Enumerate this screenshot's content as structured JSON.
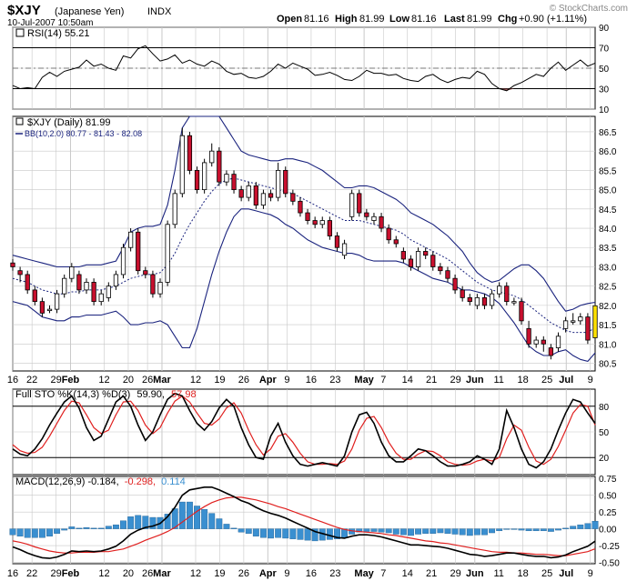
{
  "header": {
    "symbol": "$XJY",
    "symbol_desc": "(Japanese Yen)",
    "exchange": "INDX",
    "date": "10-Jul-2007 10:50am",
    "open_label": "Open",
    "open": "81.16",
    "high_label": "High",
    "high": "81.99",
    "low_label": "Low",
    "low": "81.16",
    "last_label": "Last",
    "last": "81.99",
    "chg_label": "Chg",
    "chg": "+0.90 (+1.11%)",
    "watermark": "© StockCharts.com"
  },
  "colors": {
    "up_candle": "#ffffff",
    "down_candle": "#c8102e",
    "bollinger": "#1a237e",
    "rsi_line": "#000000",
    "rsi_fill": "#8b4a4a",
    "sto_k": "#000000",
    "sto_d": "#e0201f",
    "macd_line": "#000000",
    "macd_signal": "#e0201f",
    "macd_hist": "#3a8fd0",
    "grid": "#c8c8c8",
    "highlight": "#ffe200"
  },
  "chart_data": [
    {
      "type": "line",
      "panel": "rsi",
      "legend": "RSI(14) 55.21",
      "ylim": [
        10,
        90
      ],
      "ticks": [
        "90",
        "70",
        "50",
        "30",
        "10"
      ],
      "reference_lines": [
        70,
        30
      ],
      "values": [
        33,
        30,
        31,
        30,
        41,
        46,
        42,
        47,
        49,
        51,
        58,
        52,
        54,
        50,
        48,
        62,
        60,
        69,
        72,
        64,
        57,
        59,
        63,
        55,
        58,
        54,
        52,
        57,
        54,
        47,
        44,
        45,
        41,
        40,
        42,
        47,
        54,
        50,
        55,
        52,
        49,
        43,
        44,
        46,
        43,
        39,
        38,
        42,
        48,
        45,
        45,
        43,
        44,
        40,
        38,
        37,
        42,
        44,
        39,
        36,
        39,
        41,
        40,
        47,
        44,
        35,
        30,
        28,
        33,
        36,
        40,
        44,
        42,
        50,
        56,
        48,
        53,
        58,
        52,
        55
      ]
    },
    {
      "type": "candlestick",
      "panel": "price",
      "legend_1": "$XJY (Daily) 81.99",
      "legend_2": "BB(10,2.0) 80.77 - 81.43 - 82.08",
      "ylim": [
        80.5,
        86.5
      ],
      "ticks": [
        "86.5",
        "86.0",
        "85.5",
        "85.0",
        "84.5",
        "84.0",
        "83.5",
        "83.0",
        "82.5",
        "82.0",
        "81.5",
        "81.0",
        "80.5"
      ],
      "close": [
        83.0,
        82.8,
        82.4,
        82.1,
        81.8,
        81.9,
        82.3,
        82.7,
        83.0,
        82.4,
        82.6,
        82.1,
        82.3,
        82.5,
        82.8,
        83.5,
        83.9,
        82.9,
        82.8,
        82.3,
        82.6,
        84.1,
        84.9,
        86.4,
        85.5,
        85.0,
        85.7,
        86.0,
        85.2,
        85.4,
        85.0,
        84.8,
        85.1,
        84.6,
        84.9,
        84.8,
        85.5,
        84.9,
        84.7,
        84.4,
        84.2,
        84.1,
        84.2,
        83.8,
        83.5,
        83.6,
        84.9,
        84.4,
        84.3,
        84.3,
        84.0,
        83.7,
        83.6,
        83.2,
        83.0,
        83.4,
        83.3,
        83.0,
        82.9,
        82.7,
        82.4,
        82.2,
        82.1,
        82.2,
        82.0,
        82.3,
        82.5,
        82.1,
        82.1,
        81.6,
        81.0,
        81.1,
        81.0,
        80.7,
        81.2,
        81.6,
        81.6,
        81.7,
        81.1,
        81.99
      ],
      "open": [
        83.1,
        82.9,
        82.8,
        82.4,
        82.1,
        81.9,
        81.9,
        82.3,
        82.7,
        82.8,
        82.4,
        82.6,
        82.1,
        82.2,
        82.5,
        82.8,
        83.5,
        83.9,
        82.9,
        82.8,
        82.3,
        82.6,
        84.1,
        84.9,
        86.4,
        85.5,
        85.0,
        85.7,
        86.0,
        85.2,
        85.4,
        85.0,
        84.8,
        85.1,
        84.6,
        84.9,
        84.8,
        85.5,
        84.9,
        84.7,
        84.4,
        84.2,
        84.1,
        84.2,
        83.8,
        83.3,
        84.3,
        84.9,
        84.4,
        84.2,
        84.3,
        84.0,
        83.7,
        83.4,
        83.2,
        83.0,
        83.4,
        83.3,
        83.0,
        82.9,
        82.7,
        82.4,
        82.2,
        82.0,
        82.2,
        82.0,
        82.3,
        82.5,
        82.1,
        82.1,
        81.4,
        81.0,
        81.1,
        80.9,
        80.9,
        81.4,
        81.6,
        81.6,
        81.7,
        81.16
      ],
      "high": [
        83.2,
        83.0,
        82.9,
        82.5,
        82.2,
        82.0,
        82.4,
        82.8,
        83.1,
        82.9,
        82.7,
        82.7,
        82.4,
        82.6,
        82.9,
        83.6,
        84.0,
        84.0,
        83.0,
        82.9,
        82.7,
        84.2,
        85.0,
        86.6,
        86.5,
        85.6,
        85.8,
        86.2,
        86.1,
        85.5,
        85.5,
        85.1,
        85.2,
        85.2,
        85.0,
        85.0,
        85.7,
        85.6,
        85.0,
        84.8,
        84.5,
        84.3,
        84.3,
        84.3,
        83.9,
        83.7,
        85.0,
        85.0,
        84.5,
        84.4,
        84.4,
        84.1,
        83.8,
        83.5,
        83.3,
        83.5,
        83.5,
        83.4,
        83.1,
        83.0,
        82.8,
        82.5,
        82.3,
        82.3,
        82.3,
        82.4,
        82.6,
        82.6,
        82.2,
        82.2,
        81.6,
        81.2,
        81.2,
        81.0,
        81.3,
        81.7,
        81.8,
        81.8,
        81.8,
        81.99
      ],
      "low": [
        82.9,
        82.6,
        82.3,
        82.0,
        81.7,
        81.8,
        81.8,
        82.2,
        82.6,
        82.3,
        82.3,
        82.0,
        82.0,
        82.1,
        82.4,
        82.7,
        83.4,
        82.8,
        82.7,
        82.2,
        82.2,
        82.5,
        84.0,
        84.8,
        85.4,
        84.9,
        84.9,
        85.6,
        85.1,
        85.1,
        84.9,
        84.7,
        84.7,
        84.5,
        84.5,
        84.7,
        84.7,
        84.8,
        84.6,
        84.3,
        84.1,
        84.0,
        84.0,
        83.7,
        83.4,
        83.2,
        84.2,
        84.3,
        84.2,
        84.1,
        83.9,
        83.6,
        83.5,
        83.1,
        82.9,
        82.9,
        83.2,
        82.9,
        82.8,
        82.6,
        82.3,
        82.1,
        82.0,
        81.9,
        81.9,
        81.9,
        82.2,
        82.0,
        82.0,
        81.5,
        80.9,
        80.9,
        80.8,
        80.6,
        80.8,
        81.3,
        81.5,
        81.5,
        81.0,
        81.16
      ],
      "bb_middle": [
        82.7,
        82.65,
        82.6,
        82.5,
        82.4,
        82.35,
        82.3,
        82.3,
        82.35,
        82.35,
        82.4,
        82.4,
        82.4,
        82.45,
        82.5,
        82.6,
        82.7,
        82.75,
        82.8,
        82.8,
        82.85,
        83.05,
        83.35,
        83.75,
        84.1,
        84.4,
        84.7,
        84.95,
        85.15,
        85.25,
        85.3,
        85.25,
        85.2,
        85.15,
        85.1,
        85.05,
        85.0,
        84.95,
        84.9,
        84.8,
        84.7,
        84.6,
        84.5,
        84.4,
        84.3,
        84.2,
        84.2,
        84.2,
        84.15,
        84.1,
        84.05,
        84.0,
        83.95,
        83.85,
        83.7,
        83.6,
        83.5,
        83.4,
        83.3,
        83.2,
        83.05,
        82.9,
        82.75,
        82.6,
        82.5,
        82.4,
        82.35,
        82.3,
        82.25,
        82.15,
        82.0,
        81.85,
        81.7,
        81.55,
        81.45,
        81.35,
        81.3,
        81.3,
        81.3,
        81.43
      ],
      "bb_upper": [
        83.3,
        83.25,
        83.2,
        83.15,
        83.1,
        83.05,
        83.0,
        83.0,
        83.0,
        83.0,
        83.05,
        83.05,
        83.05,
        83.1,
        83.15,
        83.5,
        83.9,
        84.0,
        84.05,
        84.05,
        84.1,
        84.6,
        85.5,
        86.6,
        87.3,
        87.4,
        87.3,
        87.1,
        86.9,
        86.6,
        86.3,
        86.0,
        85.9,
        85.85,
        85.8,
        85.75,
        85.75,
        85.8,
        85.8,
        85.75,
        85.7,
        85.6,
        85.5,
        85.35,
        85.2,
        85.05,
        85.05,
        85.1,
        85.1,
        85.05,
        84.95,
        84.85,
        84.75,
        84.6,
        84.4,
        84.3,
        84.2,
        84.1,
        83.95,
        83.8,
        83.6,
        83.4,
        83.1,
        82.85,
        82.7,
        82.6,
        82.65,
        82.8,
        82.95,
        83.05,
        83.05,
        82.9,
        82.7,
        82.4,
        82.1,
        81.85,
        81.9,
        82.0,
        82.05,
        82.08
      ],
      "bb_lower": [
        82.1,
        82.05,
        82.0,
        81.85,
        81.7,
        81.65,
        81.6,
        81.6,
        81.7,
        81.7,
        81.75,
        81.75,
        81.75,
        81.8,
        81.85,
        81.7,
        81.5,
        81.5,
        81.55,
        81.55,
        81.6,
        81.5,
        81.2,
        80.9,
        80.9,
        81.4,
        82.1,
        82.8,
        83.4,
        83.9,
        84.3,
        84.5,
        84.5,
        84.45,
        84.4,
        84.35,
        84.25,
        84.1,
        84.0,
        83.85,
        83.7,
        83.6,
        83.5,
        83.45,
        83.4,
        83.35,
        83.35,
        83.3,
        83.2,
        83.15,
        83.15,
        83.15,
        83.15,
        83.1,
        83.0,
        82.9,
        82.8,
        82.7,
        82.65,
        82.6,
        82.5,
        82.4,
        82.4,
        82.35,
        82.3,
        82.2,
        82.05,
        81.8,
        81.55,
        81.25,
        80.95,
        80.8,
        80.7,
        80.7,
        80.8,
        80.85,
        80.7,
        80.6,
        80.55,
        80.77
      ]
    },
    {
      "type": "line",
      "panel": "stochastic",
      "legend_1": "Full STO %K(14,3) %D(3)",
      "legend_k": "59.90,",
      "legend_d": "57.98",
      "ylim": [
        0,
        100
      ],
      "ticks": [
        "80",
        "50",
        "20"
      ],
      "reference_lines": [
        80,
        20
      ],
      "k": [
        30,
        24,
        22,
        30,
        42,
        58,
        72,
        85,
        92,
        78,
        55,
        40,
        45,
        65,
        85,
        92,
        80,
        58,
        40,
        50,
        70,
        88,
        95,
        92,
        75,
        60,
        52,
        62,
        78,
        88,
        80,
        55,
        35,
        20,
        18,
        45,
        60,
        38,
        22,
        12,
        10,
        12,
        14,
        12,
        10,
        22,
        50,
        70,
        73,
        60,
        38,
        22,
        15,
        15,
        22,
        30,
        28,
        22,
        15,
        10,
        10,
        12,
        15,
        22,
        18,
        12,
        30,
        75,
        55,
        30,
        12,
        8,
        15,
        30,
        52,
        72,
        88,
        85,
        72,
        59.9
      ],
      "d": [
        35,
        28,
        25,
        26,
        32,
        45,
        60,
        75,
        86,
        84,
        70,
        55,
        48,
        52,
        70,
        85,
        86,
        75,
        58,
        48,
        55,
        72,
        86,
        92,
        85,
        72,
        60,
        58,
        65,
        78,
        84,
        72,
        52,
        35,
        23,
        30,
        45,
        48,
        38,
        25,
        15,
        12,
        12,
        13,
        12,
        16,
        30,
        52,
        66,
        68,
        55,
        38,
        25,
        18,
        18,
        24,
        28,
        27,
        22,
        15,
        12,
        11,
        12,
        16,
        18,
        16,
        20,
        42,
        58,
        52,
        32,
        16,
        12,
        18,
        33,
        52,
        72,
        82,
        80,
        57.98
      ]
    },
    {
      "type": "line",
      "panel": "macd",
      "legend_1": "MACD(12,26,9) -0.184,",
      "legend_signal": "-0.298,",
      "legend_hist": "0.114",
      "ylim": [
        -0.5,
        0.75
      ],
      "ticks": [
        "0.75",
        "0.50",
        "0.25",
        "0.00",
        "-0.25",
        "-0.50"
      ],
      "macd": [
        -0.27,
        -0.31,
        -0.36,
        -0.4,
        -0.43,
        -0.44,
        -0.42,
        -0.38,
        -0.33,
        -0.34,
        -0.33,
        -0.34,
        -0.33,
        -0.3,
        -0.26,
        -0.18,
        -0.08,
        -0.02,
        0.02,
        0.04,
        0.08,
        0.18,
        0.32,
        0.5,
        0.58,
        0.6,
        0.62,
        0.62,
        0.58,
        0.53,
        0.48,
        0.42,
        0.38,
        0.32,
        0.27,
        0.23,
        0.2,
        0.16,
        0.11,
        0.06,
        0.01,
        -0.04,
        -0.07,
        -0.1,
        -0.13,
        -0.14,
        -0.11,
        -0.09,
        -0.09,
        -0.1,
        -0.12,
        -0.15,
        -0.18,
        -0.21,
        -0.24,
        -0.24,
        -0.25,
        -0.26,
        -0.27,
        -0.29,
        -0.32,
        -0.35,
        -0.38,
        -0.39,
        -0.41,
        -0.4,
        -0.38,
        -0.36,
        -0.36,
        -0.38,
        -0.4,
        -0.41,
        -0.41,
        -0.43,
        -0.42,
        -0.39,
        -0.34,
        -0.3,
        -0.26,
        -0.184
      ],
      "signal": [
        -0.18,
        -0.2,
        -0.23,
        -0.27,
        -0.3,
        -0.33,
        -0.35,
        -0.36,
        -0.36,
        -0.35,
        -0.35,
        -0.35,
        -0.34,
        -0.34,
        -0.32,
        -0.3,
        -0.26,
        -0.22,
        -0.17,
        -0.13,
        -0.09,
        -0.04,
        0.02,
        0.1,
        0.18,
        0.26,
        0.33,
        0.39,
        0.43,
        0.46,
        0.47,
        0.47,
        0.45,
        0.43,
        0.4,
        0.37,
        0.33,
        0.3,
        0.26,
        0.22,
        0.18,
        0.14,
        0.1,
        0.06,
        0.02,
        -0.01,
        -0.03,
        -0.04,
        -0.05,
        -0.06,
        -0.07,
        -0.09,
        -0.1,
        -0.12,
        -0.14,
        -0.16,
        -0.18,
        -0.19,
        -0.21,
        -0.22,
        -0.24,
        -0.26,
        -0.28,
        -0.3,
        -0.32,
        -0.34,
        -0.35,
        -0.35,
        -0.36,
        -0.36,
        -0.37,
        -0.38,
        -0.38,
        -0.39,
        -0.4,
        -0.4,
        -0.38,
        -0.36,
        -0.34,
        -0.298
      ]
    }
  ],
  "x_axis": {
    "labels": [
      {
        "text": "16",
        "i": 0,
        "bold": false
      },
      {
        "text": "22",
        "i": 4,
        "bold": false
      },
      {
        "text": "29",
        "i": 9,
        "bold": false
      },
      {
        "text": "Feb",
        "i": 12,
        "bold": true
      },
      {
        "text": "12",
        "i": 19,
        "bold": false
      },
      {
        "text": "20",
        "i": 24,
        "bold": false
      },
      {
        "text": "26",
        "i": 28,
        "bold": false
      },
      {
        "text": "Mar",
        "i": 31,
        "bold": true
      },
      {
        "text": "12",
        "i": 38,
        "bold": false
      },
      {
        "text": "19",
        "i": 43,
        "bold": false
      },
      {
        "text": "26",
        "i": 48,
        "bold": false
      },
      {
        "text": "Apr",
        "i": 53,
        "bold": true
      },
      {
        "text": "9",
        "i": 57,
        "bold": false
      },
      {
        "text": "16",
        "i": 62,
        "bold": false
      },
      {
        "text": "23",
        "i": 67,
        "bold": false
      },
      {
        "text": "May",
        "i": 73,
        "bold": true
      },
      {
        "text": "7",
        "i": 77,
        "bold": false
      },
      {
        "text": "14",
        "i": 82,
        "bold": false
      },
      {
        "text": "21",
        "i": 87,
        "bold": false
      },
      {
        "text": "29",
        "i": 92,
        "bold": false
      },
      {
        "text": "Jun",
        "i": 96,
        "bold": true
      },
      {
        "text": "11",
        "i": 101,
        "bold": false
      },
      {
        "text": "18",
        "i": 106,
        "bold": false
      },
      {
        "text": "25",
        "i": 111,
        "bold": false
      },
      {
        "text": "Jul",
        "i": 115,
        "bold": true
      },
      {
        "text": "9",
        "i": 120,
        "bold": false
      }
    ]
  }
}
